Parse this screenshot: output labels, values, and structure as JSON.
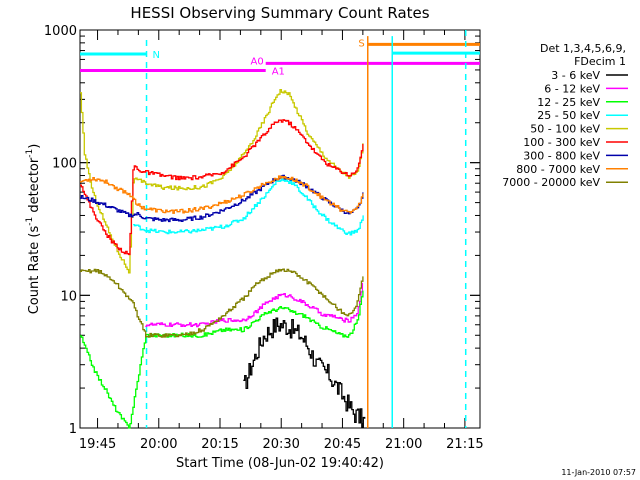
{
  "chart_data": {
    "type": "line",
    "title": "HESSI Observing Summary Count Rates",
    "xlabel": "Start Time (08-Jun-02 19:40:42)",
    "ylabel": "Count Rate (s",
    "ylabel_sup1": "-1",
    "ylabel_mid": " detector",
    "ylabel_sup2": "-1",
    "ylabel_end": ")",
    "y_scale": "log",
    "ylim": [
      1,
      1000
    ],
    "xlim_minutes": [
      0,
      98
    ],
    "y_ticks": [
      {
        "value": 1,
        "label": "1"
      },
      {
        "value": 10,
        "label": "10"
      },
      {
        "value": 100,
        "label": "100"
      },
      {
        "value": 1000,
        "label": "1000"
      }
    ],
    "x_ticks": [
      {
        "t": 4.3,
        "label": "19:45"
      },
      {
        "t": 19.3,
        "label": "20:00"
      },
      {
        "t": 34.3,
        "label": "20:15"
      },
      {
        "t": 49.3,
        "label": "20:30"
      },
      {
        "t": 64.3,
        "label": "20:45"
      },
      {
        "t": 79.3,
        "label": "21:00"
      },
      {
        "t": 94.3,
        "label": "21:15"
      }
    ],
    "legend_placement": "right",
    "legend_header": [
      "Det 1,3,4,5,6,9,",
      "FDecim 1"
    ],
    "series": [
      {
        "name": "3 - 6 keV",
        "color": "#000000",
        "points": [
          [
            40,
            2
          ],
          [
            42,
            3
          ],
          [
            45,
            5
          ],
          [
            48,
            6
          ],
          [
            50,
            6
          ],
          [
            52,
            5.5
          ],
          [
            54,
            5
          ],
          [
            56,
            4
          ],
          [
            58,
            3
          ],
          [
            61,
            2.5
          ],
          [
            64,
            1.8
          ],
          [
            67,
            1.3
          ],
          [
            70,
            1.1
          ]
        ]
      },
      {
        "name": "6 - 12 keV",
        "color": "#ff00ff",
        "points": [
          [
            16,
            6
          ],
          [
            20,
            6
          ],
          [
            25,
            6
          ],
          [
            30,
            6
          ],
          [
            35,
            6.5
          ],
          [
            40,
            6.5
          ],
          [
            43,
            7.5
          ],
          [
            46,
            9
          ],
          [
            49,
            10
          ],
          [
            51,
            10
          ],
          [
            54,
            9
          ],
          [
            57,
            8
          ],
          [
            60,
            7
          ],
          [
            62,
            7
          ],
          [
            64,
            6.5
          ],
          [
            66,
            6.5
          ],
          [
            68,
            7.5
          ],
          [
            69.5,
            14
          ]
        ]
      },
      {
        "name": "12 - 25 keV",
        "color": "#00ff00",
        "points": [
          [
            0,
            5
          ],
          [
            2,
            3.5
          ],
          [
            4,
            2.5
          ],
          [
            6,
            2
          ],
          [
            8,
            1.5
          ],
          [
            10,
            1.2
          ],
          [
            12,
            1
          ],
          [
            16,
            5
          ],
          [
            20,
            5
          ],
          [
            25,
            5
          ],
          [
            30,
            5
          ],
          [
            35,
            5.5
          ],
          [
            40,
            5.5
          ],
          [
            43,
            6.5
          ],
          [
            46,
            7.5
          ],
          [
            49,
            8
          ],
          [
            50,
            8
          ],
          [
            52,
            7.5
          ],
          [
            55,
            7
          ],
          [
            58,
            6
          ],
          [
            61,
            5.5
          ],
          [
            64,
            5
          ],
          [
            66,
            5
          ],
          [
            68,
            6.5
          ],
          [
            69.5,
            12
          ]
        ]
      },
      {
        "name": "25 - 50 keV",
        "color": "#00ffff",
        "points": [
          [
            13,
            34
          ],
          [
            16,
            31
          ],
          [
            20,
            30
          ],
          [
            25,
            30
          ],
          [
            30,
            31
          ],
          [
            35,
            33
          ],
          [
            40,
            38
          ],
          [
            43,
            48
          ],
          [
            46,
            60
          ],
          [
            48,
            72
          ],
          [
            50,
            75
          ],
          [
            52,
            70
          ],
          [
            55,
            56
          ],
          [
            58,
            44
          ],
          [
            61,
            36
          ],
          [
            64,
            31
          ],
          [
            66,
            29
          ],
          [
            68,
            31
          ],
          [
            69.5,
            40
          ]
        ]
      },
      {
        "name": "50 - 100 keV",
        "color": "#c8c800",
        "points": [
          [
            0,
            330
          ],
          [
            1,
            120
          ],
          [
            3,
            60
          ],
          [
            5,
            42
          ],
          [
            7,
            30
          ],
          [
            9,
            22
          ],
          [
            11,
            17
          ],
          [
            12,
            15
          ],
          [
            13,
            75
          ],
          [
            15,
            72
          ],
          [
            20,
            65
          ],
          [
            25,
            64
          ],
          [
            30,
            66
          ],
          [
            35,
            78
          ],
          [
            40,
            115
          ],
          [
            43,
            160
          ],
          [
            46,
            240
          ],
          [
            48,
            320
          ],
          [
            49,
            350
          ],
          [
            51,
            330
          ],
          [
            53,
            250
          ],
          [
            56,
            160
          ],
          [
            60,
            110
          ],
          [
            63,
            90
          ],
          [
            66,
            78
          ],
          [
            68,
            85
          ],
          [
            69.5,
            150
          ]
        ]
      },
      {
        "name": "100 - 300 keV",
        "color": "#ff0000",
        "points": [
          [
            0,
            70
          ],
          [
            2,
            50
          ],
          [
            4,
            38
          ],
          [
            6,
            30
          ],
          [
            8,
            25
          ],
          [
            10,
            22
          ],
          [
            12,
            20
          ],
          [
            13,
            95
          ],
          [
            15,
            86
          ],
          [
            20,
            80
          ],
          [
            25,
            76
          ],
          [
            30,
            78
          ],
          [
            35,
            85
          ],
          [
            40,
            110
          ],
          [
            43,
            140
          ],
          [
            46,
            175
          ],
          [
            48,
            205
          ],
          [
            50,
            210
          ],
          [
            52,
            190
          ],
          [
            55,
            150
          ],
          [
            58,
            115
          ],
          [
            61,
            95
          ],
          [
            64,
            86
          ],
          [
            66,
            80
          ],
          [
            68,
            90
          ],
          [
            69.5,
            150
          ]
        ]
      },
      {
        "name": "300 - 800 keV",
        "color": "#0000aa",
        "points": [
          [
            0,
            55
          ],
          [
            3,
            52
          ],
          [
            6,
            48
          ],
          [
            9,
            44
          ],
          [
            12,
            40
          ],
          [
            14,
            41
          ],
          [
            16,
            38
          ],
          [
            20,
            37
          ],
          [
            25,
            37
          ],
          [
            30,
            39
          ],
          [
            35,
            44
          ],
          [
            40,
            52
          ],
          [
            43,
            60
          ],
          [
            46,
            70
          ],
          [
            48,
            76
          ],
          [
            50,
            78
          ],
          [
            52,
            75
          ],
          [
            55,
            68
          ],
          [
            58,
            58
          ],
          [
            61,
            50
          ],
          [
            64,
            44
          ],
          [
            66,
            41
          ],
          [
            68,
            45
          ],
          [
            69.5,
            60
          ]
        ]
      },
      {
        "name": "800 - 7000 keV",
        "color": "#ff8000",
        "points": [
          [
            0,
            72
          ],
          [
            3,
            76
          ],
          [
            5,
            74
          ],
          [
            7,
            70
          ],
          [
            9,
            64
          ],
          [
            11,
            60
          ],
          [
            13,
            55
          ],
          [
            14,
            48
          ],
          [
            16,
            45
          ],
          [
            20,
            43
          ],
          [
            25,
            43
          ],
          [
            30,
            45
          ],
          [
            35,
            50
          ],
          [
            40,
            57
          ],
          [
            43,
            64
          ],
          [
            46,
            72
          ],
          [
            48,
            76
          ],
          [
            50,
            78
          ],
          [
            52,
            75
          ],
          [
            55,
            68
          ],
          [
            58,
            58
          ],
          [
            61,
            50
          ],
          [
            64,
            44
          ],
          [
            66,
            42
          ],
          [
            68,
            46
          ],
          [
            69.5,
            60
          ]
        ]
      },
      {
        "name": "7000 - 20000 keV",
        "color": "#808000",
        "points": [
          [
            0,
            15
          ],
          [
            4,
            15.5
          ],
          [
            8,
            13
          ],
          [
            10,
            11
          ],
          [
            12,
            9.5
          ],
          [
            13,
            8.5
          ],
          [
            16,
            5
          ],
          [
            20,
            5
          ],
          [
            25,
            5
          ],
          [
            30,
            5.5
          ],
          [
            35,
            7
          ],
          [
            40,
            9.5
          ],
          [
            43,
            12
          ],
          [
            46,
            14
          ],
          [
            48,
            15.5
          ],
          [
            50,
            15.5
          ],
          [
            52,
            15
          ],
          [
            55,
            13
          ],
          [
            58,
            11
          ],
          [
            61,
            9
          ],
          [
            64,
            7.5
          ],
          [
            66,
            7
          ],
          [
            68,
            9
          ],
          [
            69.5,
            15
          ]
        ]
      }
    ],
    "markers": [
      {
        "label": "N",
        "color": "#00ffff",
        "type": "dashed-vline",
        "t": 16.3,
        "bar_from": 0,
        "bar_to": 16.3,
        "bar_value": 660
      },
      {
        "label": "A0",
        "color": "#ff00ff",
        "type": "bar",
        "bar_from": 0,
        "bar_to": 45.5,
        "bar_value": 495
      },
      {
        "label": "A1",
        "color": "#ff00ff",
        "type": "bar",
        "bar_from": 45.5,
        "bar_to": 98,
        "bar_value": 560
      },
      {
        "label": "S",
        "color": "#ff8000",
        "type": "bar",
        "bar_from": 70.5,
        "bar_to": 98,
        "bar_value": 780
      }
    ],
    "solid_vlines": [
      {
        "t": 70.5,
        "color": "#ff8000"
      },
      {
        "t": 76.5,
        "color": "#00ffff"
      }
    ],
    "cyan_bar_right": {
      "from": 76.5,
      "to": 98,
      "value": 670
    },
    "dashed_vline_right": {
      "t": 94.5,
      "color": "#00ffff"
    },
    "timestamp": "11-Jan-2010 07:57"
  }
}
